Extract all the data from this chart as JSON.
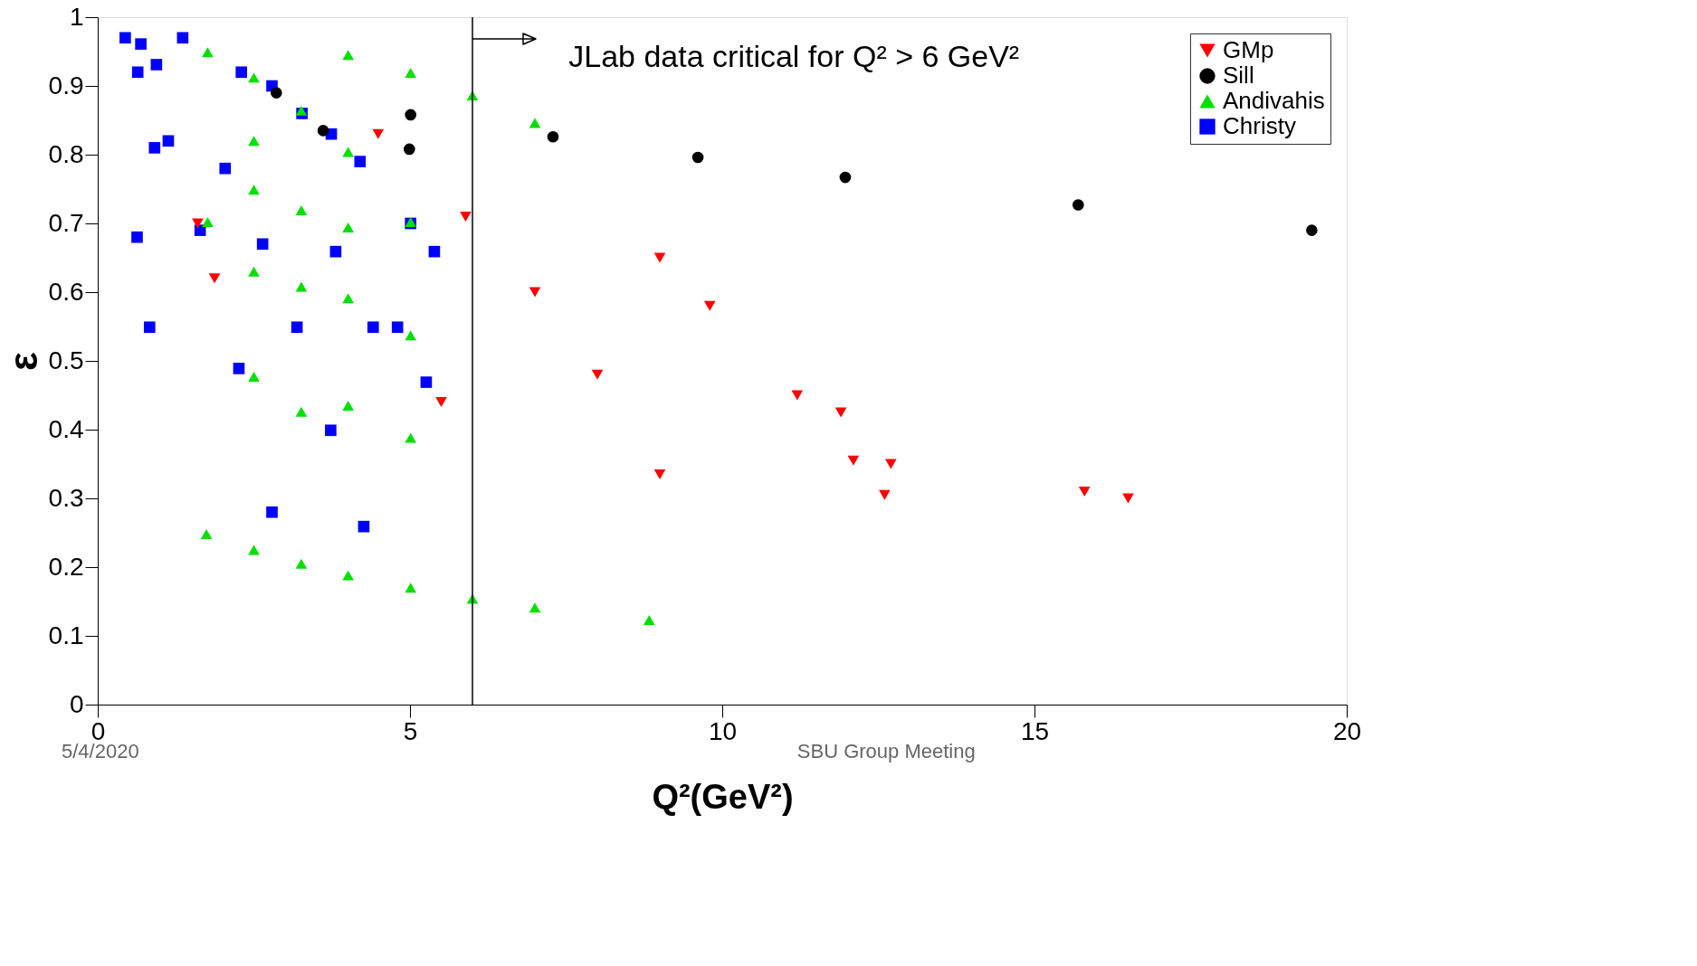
{
  "chart_data": {
    "type": "scatter",
    "xlabel": "Q²(GeV²)",
    "ylabel": "ε",
    "xlim": [
      0,
      20
    ],
    "ylim": [
      0,
      1
    ],
    "xticks": [
      0,
      5,
      10,
      15,
      20
    ],
    "yticks": [
      0,
      0.1,
      0.2,
      0.3,
      0.4,
      0.5,
      0.6,
      0.7,
      0.8,
      0.9,
      1
    ],
    "grid": false,
    "legend": "top right",
    "ref_lines": [
      {
        "axis": "x",
        "value": 6,
        "color": "#000000"
      }
    ],
    "annotations": [
      "JLab data critical for Q² > 6 GeV²",
      "5/4/2020",
      "SBU Group Meeting"
    ],
    "series": [
      {
        "name": "GMp",
        "color": "#ff0000",
        "marker": "triangle-down",
        "x": [
          1.6,
          1.87,
          4.49,
          5.89,
          5.5,
          7.0,
          9.0,
          9.8,
          8.0,
          9.0,
          11.2,
          11.9,
          12.1,
          12.7,
          12.6,
          15.8,
          16.5
        ],
        "values": [
          0.7,
          0.62,
          0.83,
          0.71,
          0.44,
          0.6,
          0.65,
          0.58,
          0.48,
          0.335,
          0.45,
          0.425,
          0.355,
          0.35,
          0.305,
          0.31,
          0.3
        ]
      },
      {
        "name": "Sill",
        "color": "#000000",
        "marker": "circle",
        "x": [
          2.86,
          3.61,
          5.01,
          4.99,
          7.29,
          9.61,
          11.97,
          15.7,
          19.44
        ],
        "values": [
          0.89,
          0.835,
          0.858,
          0.808,
          0.826,
          0.796,
          0.767,
          0.727,
          0.69
        ]
      },
      {
        "name": "Andivahis",
        "color": "#00e000",
        "marker": "triangle",
        "x": [
          1.76,
          1.76,
          1.74,
          2.5,
          2.5,
          2.5,
          2.5,
          2.5,
          2.5,
          3.26,
          3.26,
          3.26,
          3.26,
          3.26,
          4.01,
          4.01,
          4.01,
          4.01,
          4.01,
          4.01,
          5.01,
          5.01,
          5.01,
          5.01,
          5.01,
          6.0,
          6.0,
          7.0,
          7.0,
          8.83
        ],
        "values": [
          0.949,
          0.702,
          0.248,
          0.912,
          0.82,
          0.749,
          0.63,
          0.477,
          0.225,
          0.864,
          0.719,
          0.608,
          0.426,
          0.205,
          0.945,
          0.804,
          0.694,
          0.591,
          0.435,
          0.188,
          0.919,
          0.702,
          0.537,
          0.388,
          0.17,
          0.886,
          0.154,
          0.846,
          0.141,
          0.123
        ]
      },
      {
        "name": "Christy",
        "color": "#0000ff",
        "marker": "square",
        "x": [
          0.44,
          0.69,
          0.64,
          0.94,
          1.36,
          0.91,
          1.13,
          0.63,
          0.83,
          1.64,
          2.04,
          2.3,
          2.79,
          2.64,
          2.26,
          2.79,
          3.27,
          3.19,
          3.74,
          3.81,
          3.73,
          4.2,
          4.41,
          4.26,
          4.8,
          5.01,
          5.26,
          5.39
        ],
        "values": [
          0.97,
          0.961,
          0.92,
          0.931,
          0.97,
          0.81,
          0.82,
          0.68,
          0.549,
          0.69,
          0.78,
          0.92,
          0.9,
          0.67,
          0.489,
          0.28,
          0.86,
          0.549,
          0.83,
          0.659,
          0.399,
          0.79,
          0.549,
          0.259,
          0.549,
          0.7,
          0.469,
          0.659
        ]
      }
    ]
  }
}
